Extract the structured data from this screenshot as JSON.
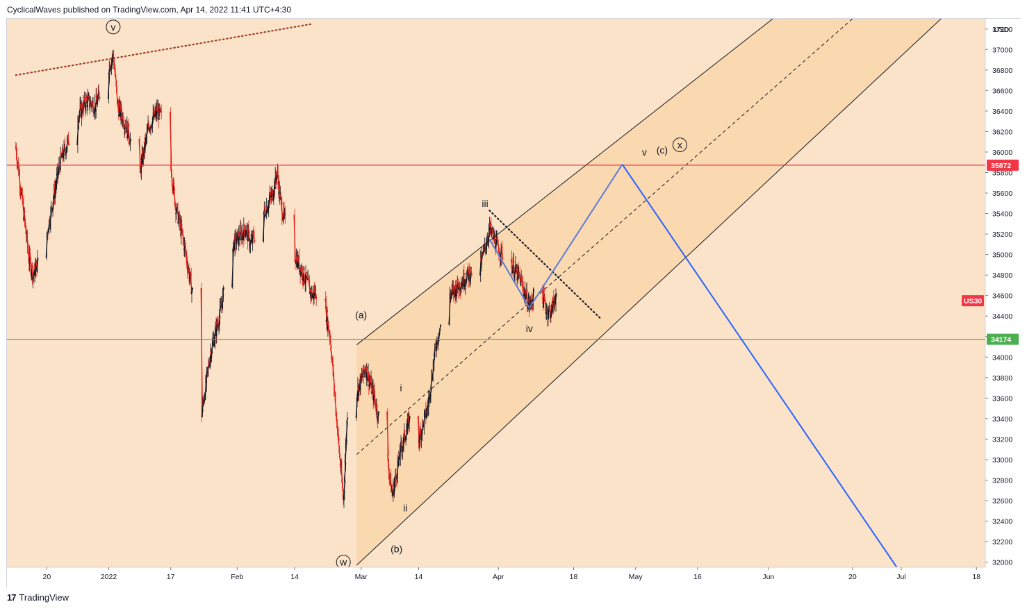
{
  "header": {
    "published": "CyclicalWaves published on TradingView.com, Apr 14, 2022 11:41 UTC+4:30"
  },
  "footer": {
    "brand": "TradingView",
    "logo_text": "17"
  },
  "chart_data": {
    "type": "candlestick",
    "symbol": "US30",
    "currency": "USD",
    "background": "#fae3c8",
    "channel_fill": "#f9d6ad",
    "ylim": [
      31950,
      37300
    ],
    "y_ticks": [
      32000,
      32200,
      32400,
      32600,
      32800,
      33000,
      33200,
      33400,
      33600,
      33800,
      34000,
      34200,
      34400,
      34600,
      34800,
      35000,
      35200,
      35400,
      35600,
      35800,
      36000,
      36200,
      36400,
      36600,
      36800,
      37000,
      37200
    ],
    "x_ticks": [
      {
        "label": "20",
        "date": "2021-12-20"
      },
      {
        "label": "2022",
        "date": "2022-01-03"
      },
      {
        "label": "17",
        "date": "2022-01-17"
      },
      {
        "label": "Feb",
        "date": "2022-02-01"
      },
      {
        "label": "14",
        "date": "2022-02-14"
      },
      {
        "label": "Mar",
        "date": "2022-03-01"
      },
      {
        "label": "14",
        "date": "2022-03-14"
      },
      {
        "label": "Apr",
        "date": "2022-04-01"
      },
      {
        "label": "18",
        "date": "2022-04-18"
      },
      {
        "label": "May",
        "date": "2022-05-02"
      },
      {
        "label": "16",
        "date": "2022-05-16"
      },
      {
        "label": "Jun",
        "date": "2022-06-01"
      },
      {
        "label": "20",
        "date": "2022-06-20"
      },
      {
        "label": "Jul",
        "date": "2022-07-01"
      },
      {
        "label": "18",
        "date": "2022-07-18"
      }
    ],
    "price_path": [
      [
        "2021-12-13",
        36050
      ],
      [
        "2021-12-16",
        34950
      ],
      [
        "2021-12-17",
        34800
      ],
      [
        "2021-12-20",
        35200
      ],
      [
        "2021-12-23",
        35900
      ],
      [
        "2021-12-27",
        36350
      ],
      [
        "2021-12-29",
        36500
      ],
      [
        "2021-12-31",
        36450
      ],
      [
        "2022-01-04",
        36950
      ],
      [
        "2022-01-05",
        36450
      ],
      [
        "2022-01-07",
        36250
      ],
      [
        "2022-01-10",
        35800
      ],
      [
        "2022-01-12",
        36250
      ],
      [
        "2022-01-14",
        36400
      ],
      [
        "2022-01-16",
        36250
      ],
      [
        "2022-01-18",
        35500
      ],
      [
        "2022-01-20",
        35100
      ],
      [
        "2022-01-22",
        34600
      ],
      [
        "2022-01-24",
        33450
      ],
      [
        "2022-01-26",
        34050
      ],
      [
        "2022-01-28",
        34400
      ],
      [
        "2022-01-31",
        35100
      ],
      [
        "2022-02-03",
        35250
      ],
      [
        "2022-02-04",
        35100
      ],
      [
        "2022-02-07",
        35400
      ],
      [
        "2022-02-09",
        35600
      ],
      [
        "2022-02-10",
        35800
      ],
      [
        "2022-02-11",
        35450
      ],
      [
        "2022-02-14",
        35000
      ],
      [
        "2022-02-16",
        34800
      ],
      [
        "2022-02-18",
        34600
      ],
      [
        "2022-02-20",
        34700
      ],
      [
        "2022-02-22",
        34200
      ],
      [
        "2022-02-24",
        33100
      ],
      [
        "2022-02-25",
        32600
      ],
      [
        "2022-02-26",
        33600
      ],
      [
        "2022-02-28",
        33650
      ],
      [
        "2022-03-02",
        33900
      ],
      [
        "2022-03-04",
        33600
      ],
      [
        "2022-03-07",
        33000
      ],
      [
        "2022-03-08",
        32650
      ],
      [
        "2022-03-10",
        33100
      ],
      [
        "2022-03-12",
        33400
      ],
      [
        "2022-03-14",
        33200
      ],
      [
        "2022-03-16",
        33500
      ],
      [
        "2022-03-18",
        34150
      ],
      [
        "2022-03-21",
        34600
      ],
      [
        "2022-03-23",
        34700
      ],
      [
        "2022-03-25",
        34800
      ],
      [
        "2022-03-28",
        34900
      ],
      [
        "2022-03-30",
        35250
      ],
      [
        "2022-04-01",
        35050
      ],
      [
        "2022-04-04",
        34900
      ],
      [
        "2022-04-06",
        34750
      ],
      [
        "2022-04-08",
        34500
      ],
      [
        "2022-04-10",
        34700
      ],
      [
        "2022-04-12",
        34450
      ],
      [
        "2022-04-13",
        34450
      ],
      [
        "2022-04-14",
        34620
      ]
    ],
    "horizontal_levels": [
      {
        "name": "resistance",
        "value": 35872,
        "label": "35872",
        "color": "#f23645"
      },
      {
        "name": "support",
        "value": 34174,
        "label": "34174",
        "color": "#4caf50"
      }
    ],
    "last_price_tag": {
      "label": "US30",
      "value": 34550,
      "color": "#f23645"
    },
    "channel": {
      "upper": [
        [
          "2022-02-28",
          34120
        ],
        [
          "2022-06-02",
          37300
        ]
      ],
      "lower": [
        [
          "2022-02-28",
          31970
        ],
        [
          "2022-07-10",
          37300
        ]
      ],
      "median": [
        [
          "2022-02-28",
          33050
        ],
        [
          "2022-06-20",
          37300
        ]
      ],
      "fill_start": "2022-02-28"
    },
    "trend_lines": [
      {
        "name": "wave-v-dotted",
        "style": "dotted",
        "color": "#a0392b",
        "points": [
          [
            "2021-12-13",
            36750
          ],
          [
            "2022-02-18",
            37250
          ]
        ]
      },
      {
        "name": "wave-iv-dotted",
        "style": "dotted",
        "color": "#131722",
        "points": [
          [
            "2022-03-30",
            35430
          ],
          [
            "2022-04-24",
            34380
          ]
        ]
      }
    ],
    "projection_path": {
      "color_light": "#5b7bd6",
      "color_dark": "#2962ff",
      "points": [
        [
          "2022-03-30",
          35150
        ],
        [
          "2022-04-08",
          34480
        ],
        [
          "2022-04-29",
          35880
        ],
        [
          "2022-06-30",
          31950
        ]
      ]
    },
    "wave_labels": [
      {
        "text": "v",
        "date": "2022-01-04",
        "value": 37220,
        "circled": true
      },
      {
        "text": "w",
        "date": "2022-02-25",
        "value": 32000,
        "circled": true
      },
      {
        "text": "x",
        "date": "2022-05-12",
        "value": 36070,
        "circled": true
      },
      {
        "text": "(a)",
        "date": "2022-03-01",
        "value": 34410,
        "circled": false
      },
      {
        "text": "(b)",
        "date": "2022-03-09",
        "value": 32130,
        "circled": false
      },
      {
        "text": "(c)",
        "date": "2022-05-08",
        "value": 36020,
        "circled": false
      },
      {
        "text": "i",
        "date": "2022-03-10",
        "value": 33700,
        "circled": false
      },
      {
        "text": "ii",
        "date": "2022-03-11",
        "value": 32530,
        "circled": false
      },
      {
        "text": "iii",
        "date": "2022-03-29",
        "value": 35500,
        "circled": false
      },
      {
        "text": "iv",
        "date": "2022-04-08",
        "value": 34280,
        "circled": false
      },
      {
        "text": "v",
        "date": "2022-05-04",
        "value": 36000,
        "circled": false
      }
    ]
  }
}
